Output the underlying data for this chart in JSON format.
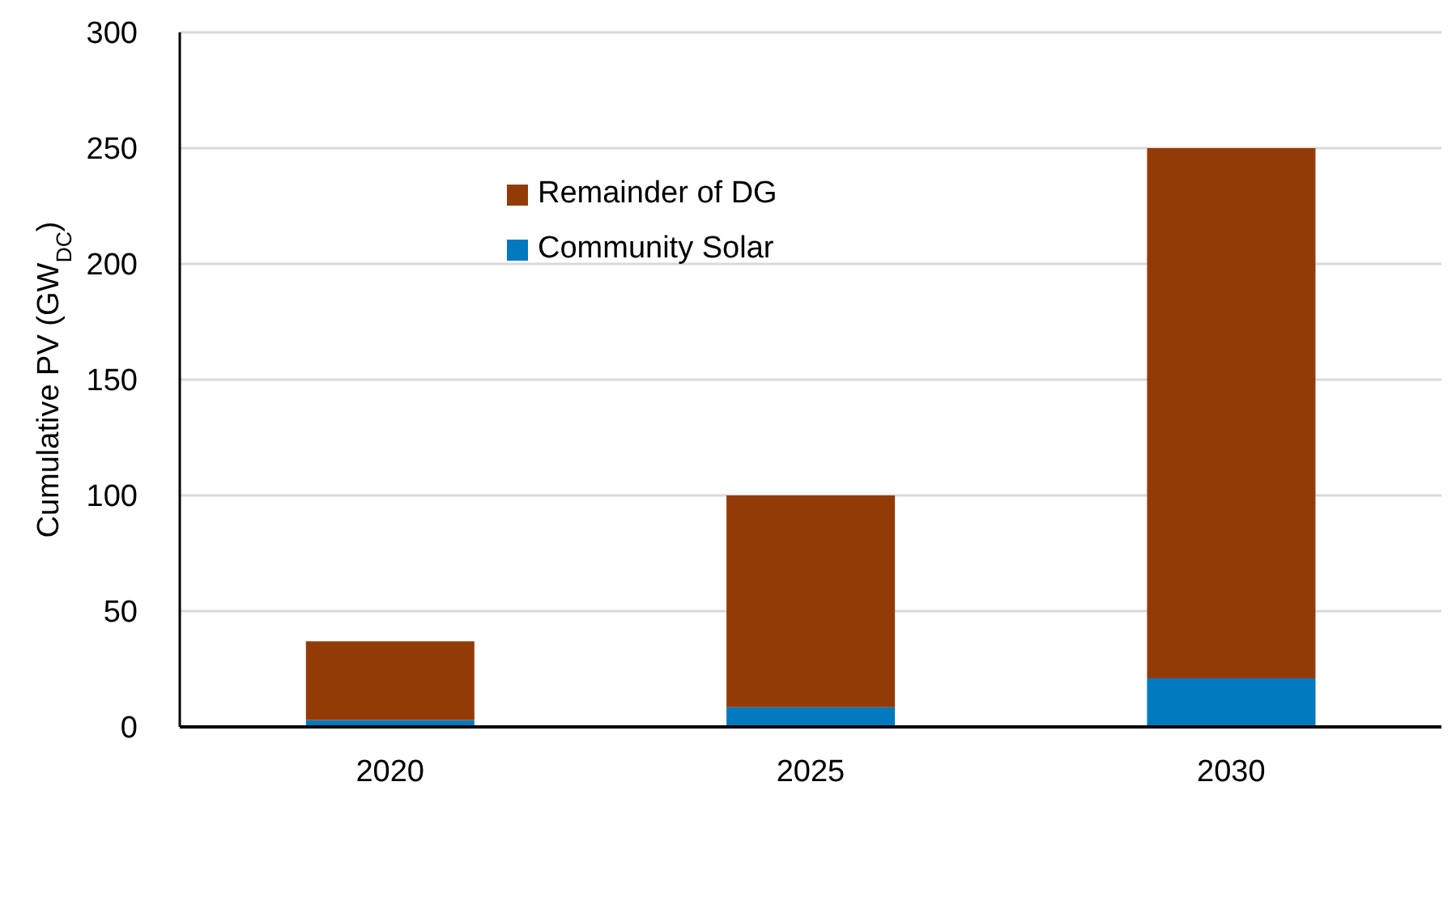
{
  "chart_data": {
    "type": "bar",
    "stacked": true,
    "ylabel": "Cumulative PV (GW$_{DC}$)",
    "categories": [
      "2020",
      "2025",
      "2030"
    ],
    "series": [
      {
        "name": "Community Solar",
        "color": "#0079bf",
        "values": [
          3,
          8.5,
          21
        ]
      },
      {
        "name": "Remainder of DG",
        "color": "#933b07",
        "values": [
          34,
          91.5,
          229
        ]
      }
    ],
    "ylim": [
      0,
      300
    ],
    "yticks": [
      0,
      50,
      100,
      150,
      200,
      250,
      300
    ],
    "grid": "y",
    "legend": "top"
  }
}
